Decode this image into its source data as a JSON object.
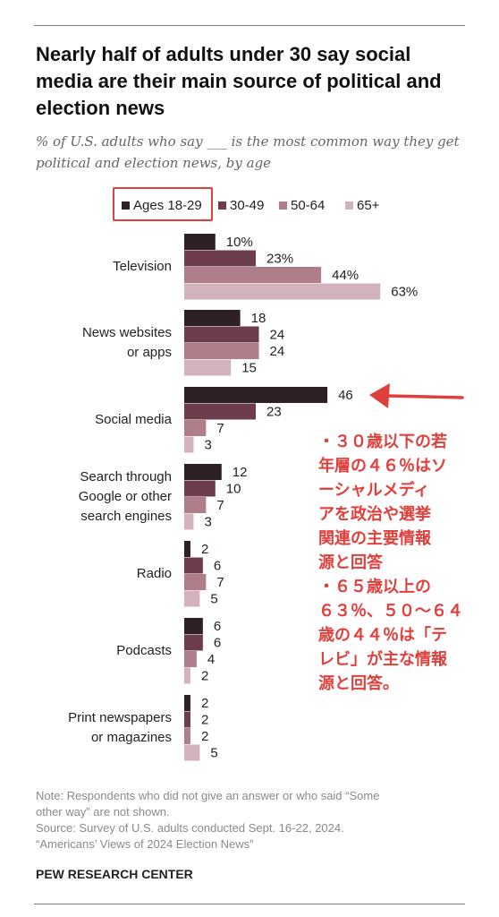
{
  "chart_data": {
    "type": "bar",
    "orientation": "horizontal",
    "title": "Nearly half of adults under 30 say social media are their main source of political and election news",
    "subtitle": "% of U.S. adults who say ___ is the most common way they get political and election news, by age",
    "categories": [
      [
        "Television"
      ],
      [
        "News websites",
        "or apps"
      ],
      [
        "Social media"
      ],
      [
        "Search through",
        "Google or other",
        "search engines"
      ],
      [
        "Radio"
      ],
      [
        "Podcasts"
      ],
      [
        "Print newspapers",
        "or magazines"
      ]
    ],
    "series": [
      {
        "name": "Ages 18-29",
        "color": "#2e2124",
        "values": [
          10,
          18,
          46,
          12,
          2,
          6,
          2
        ]
      },
      {
        "name": "30-49",
        "color": "#6e3d4b",
        "values": [
          23,
          24,
          23,
          10,
          6,
          6,
          2
        ]
      },
      {
        "name": "50-64",
        "color": "#b07e8b",
        "values": [
          44,
          24,
          7,
          7,
          7,
          4,
          2
        ]
      },
      {
        "name": "65+",
        "color": "#d2b3bb",
        "values": [
          63,
          15,
          3,
          3,
          5,
          2,
          5
        ]
      }
    ],
    "value_labels": [
      [
        "10%",
        "23%",
        "44%",
        "63%"
      ],
      [
        "18",
        "24",
        "24",
        "15"
      ],
      [
        "46",
        "23",
        "7",
        "3"
      ],
      [
        "12",
        "10",
        "7",
        "3"
      ],
      [
        "2",
        "6",
        "7",
        "5"
      ],
      [
        "6",
        "6",
        "4",
        "2"
      ],
      [
        "2",
        "2",
        "2",
        "5"
      ]
    ],
    "xlim": [
      0,
      80
    ],
    "grid": false,
    "legend_position": "top",
    "highlight_color": "#e0403c"
  },
  "annotation": {
    "lines": [
      "・３０歳以下の若",
      "年層の４６％はソ",
      "ーシャルメディ",
      "アを政治や選挙",
      "関連の主要情報",
      "源と回答",
      "・６５歳以上の",
      "６３％、５０～６４",
      "歳の４４％は「テ",
      "レビ」が主な情報",
      "源と回答。"
    ]
  },
  "notes": {
    "line1": "Note: Respondents who did not give an answer or who said “Some",
    "line2": "other way” are not shown.",
    "line3": "Source: Survey of U.S. adults conducted Sept. 16-22, 2024.",
    "line4": "“Americans’ Views of 2024 Election News”"
  },
  "source_logo": "PEW RESEARCH CENTER"
}
